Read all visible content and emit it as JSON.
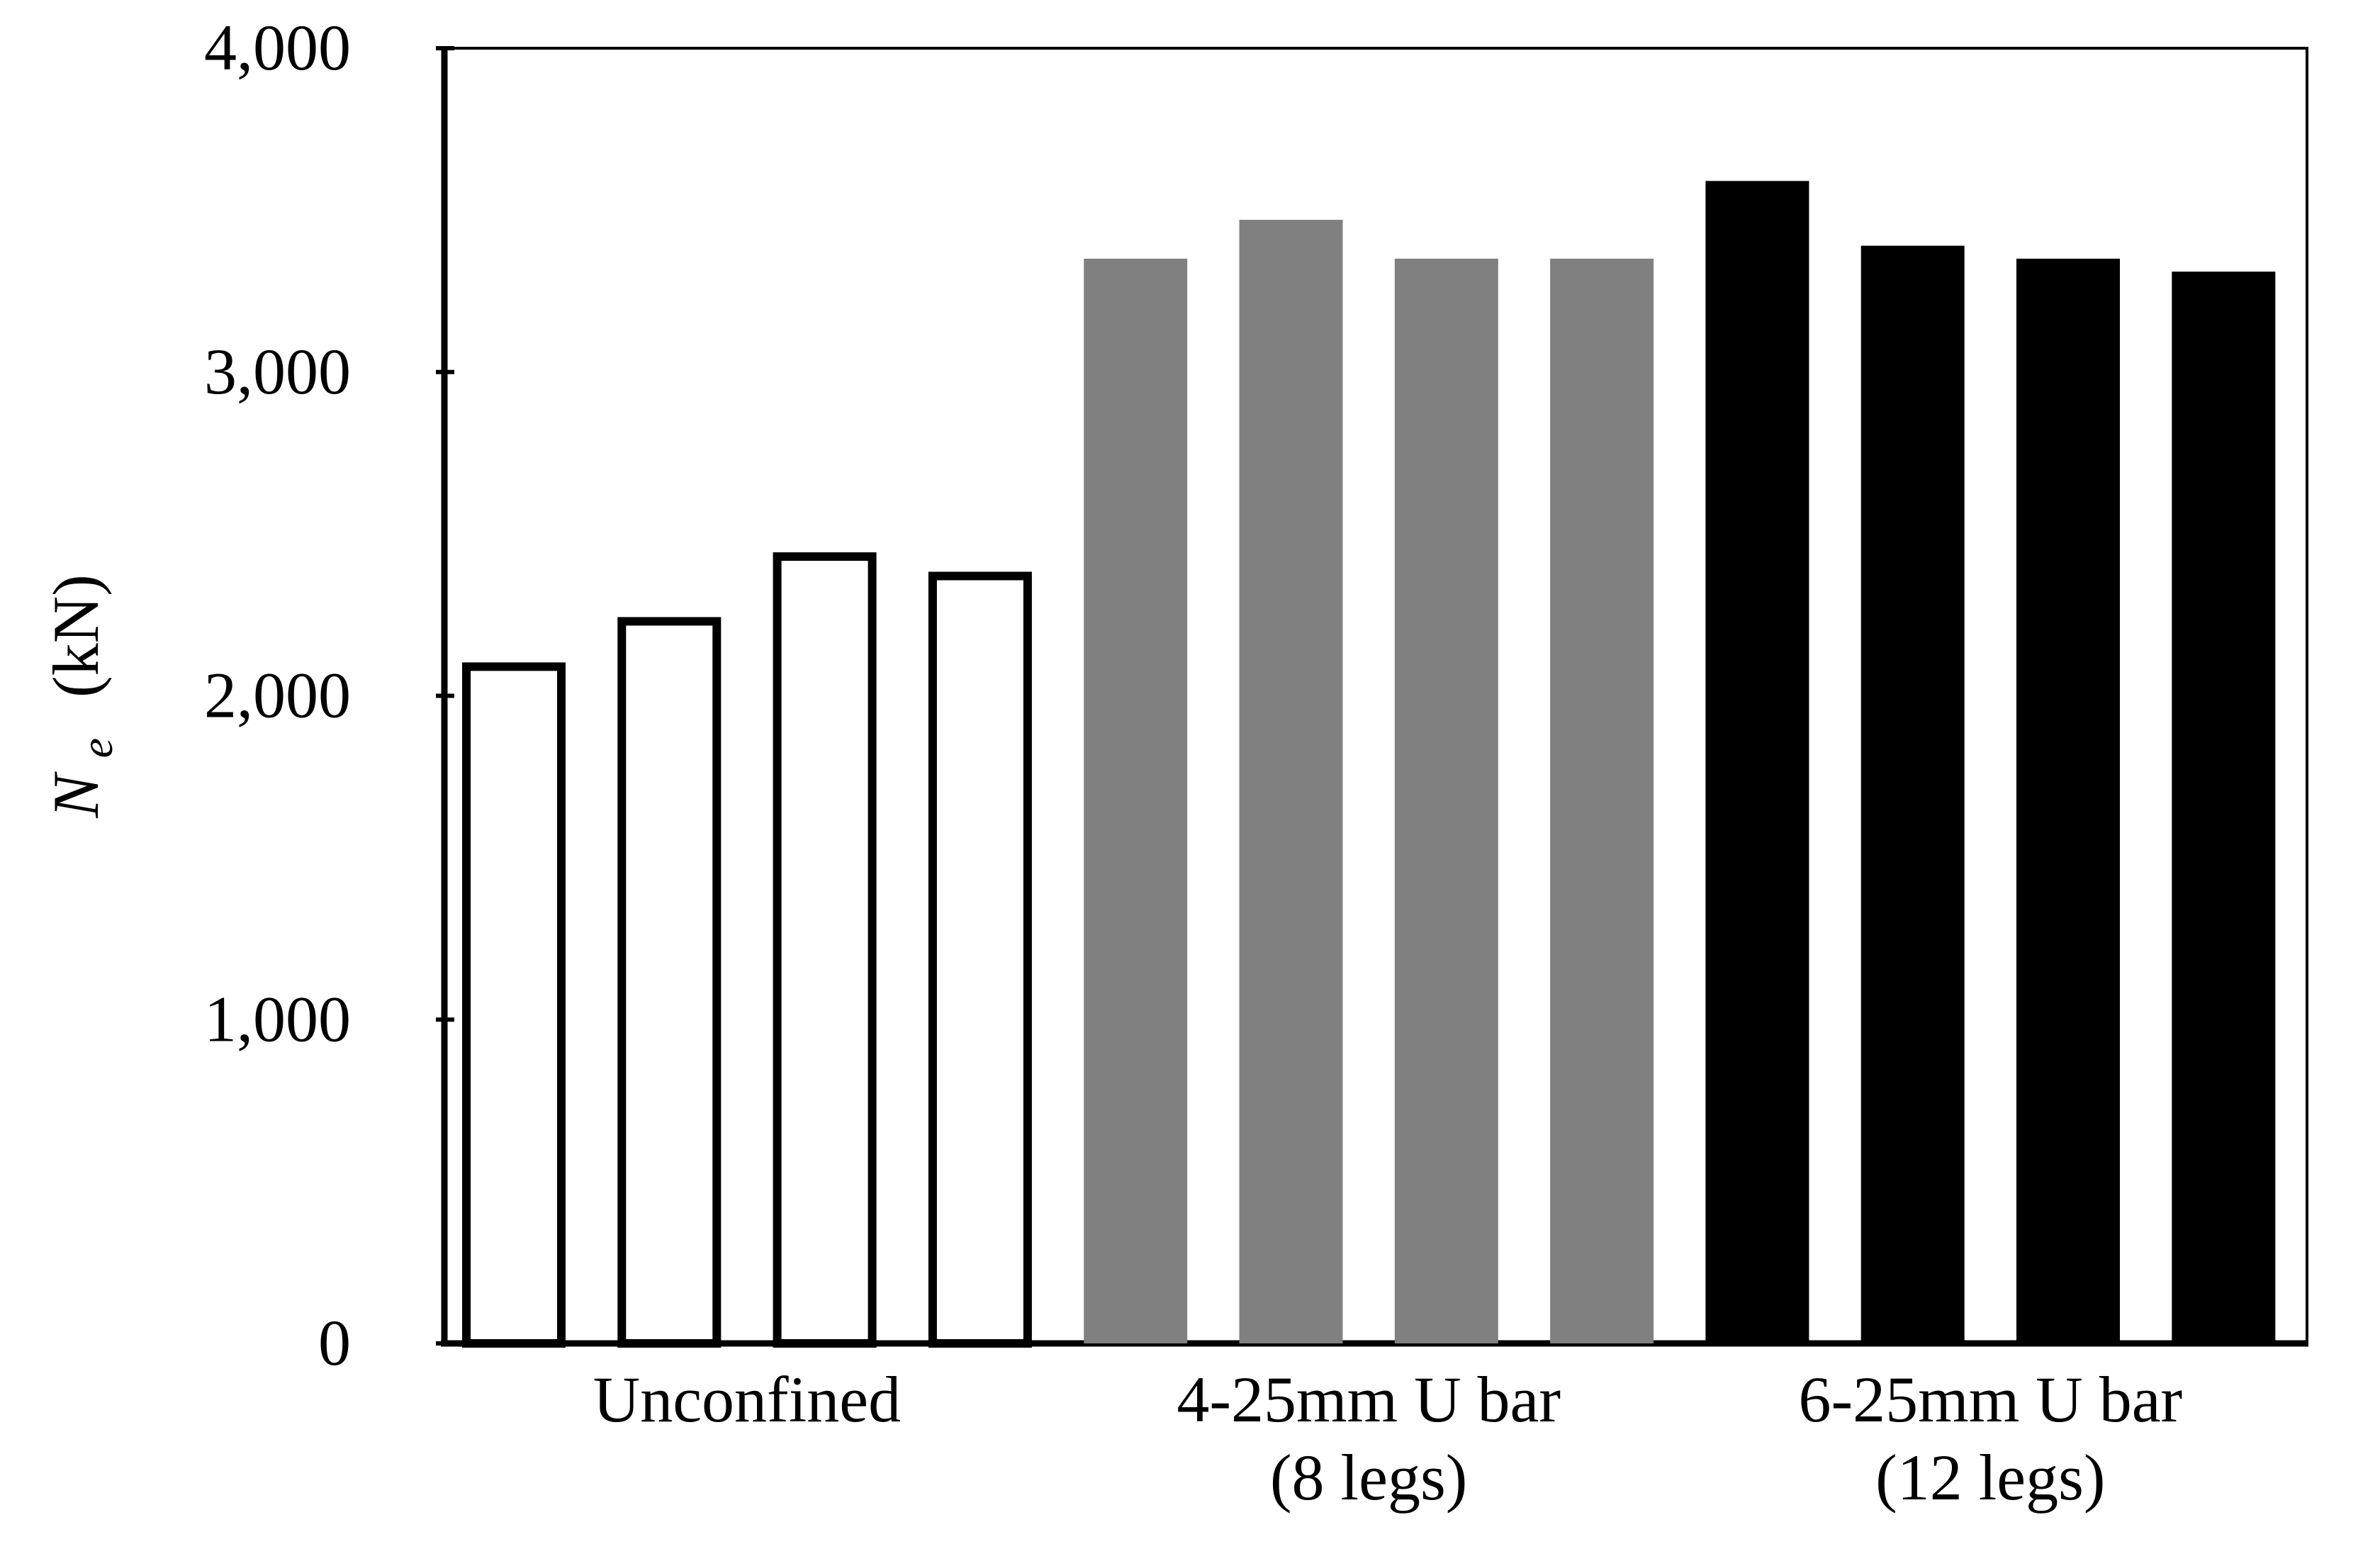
{
  "chart_data": {
    "type": "bar",
    "ylabel": {
      "symbol": "N",
      "subscript": "e",
      "unit": "(kN)"
    },
    "ylim": [
      0,
      4000
    ],
    "yticks": [
      {
        "value": 0,
        "label": "0"
      },
      {
        "value": 1000,
        "label": "1,000"
      },
      {
        "value": 2000,
        "label": "2,000"
      },
      {
        "value": 3000,
        "label": "3,000"
      },
      {
        "value": 4000,
        "label": "4,000"
      }
    ],
    "grid": false,
    "groups": [
      {
        "label_lines": [
          "Unconfined"
        ],
        "style": "outline",
        "color": "#000000",
        "values": [
          2090,
          2230,
          2430,
          2370
        ]
      },
      {
        "label_lines": [
          "4-25mm U bar",
          "(8 legs)"
        ],
        "style": "filled",
        "color": "#808080",
        "values": [
          3350,
          3470,
          3350,
          3350
        ]
      },
      {
        "label_lines": [
          "6-25mm U bar",
          "(12 legs)"
        ],
        "style": "filled",
        "color": "#000000",
        "values": [
          3590,
          3390,
          3350,
          3310
        ]
      }
    ]
  }
}
